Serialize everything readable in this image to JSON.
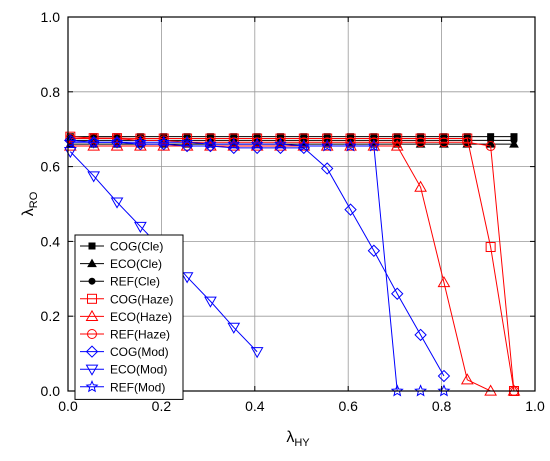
{
  "chart_data": {
    "type": "line",
    "xlabel": "λ",
    "xlabel_sub": "HY",
    "ylabel": "λ",
    "ylabel_sub": "RO",
    "xlim": [
      0,
      1
    ],
    "ylim": [
      0,
      1
    ],
    "x_ticks": [
      "0.0",
      "0.2",
      "0.4",
      "0.6",
      "0.8",
      "1.0"
    ],
    "y_ticks": [
      "0.0",
      "0.2",
      "0.4",
      "0.6",
      "0.8",
      "1.0"
    ],
    "grid": true,
    "legend_position": "lower-left",
    "series": [
      {
        "name": "COG(Cle)",
        "color": "#000000",
        "marker": "square-filled",
        "x": [
          0.005,
          0.055,
          0.105,
          0.155,
          0.205,
          0.255,
          0.305,
          0.355,
          0.405,
          0.455,
          0.505,
          0.555,
          0.605,
          0.655,
          0.705,
          0.755,
          0.805,
          0.855,
          0.905,
          0.955
        ],
        "y": [
          0.68,
          0.68,
          0.68,
          0.68,
          0.68,
          0.68,
          0.68,
          0.68,
          0.68,
          0.68,
          0.68,
          0.68,
          0.68,
          0.68,
          0.68,
          0.68,
          0.68,
          0.68,
          0.68,
          0.68
        ]
      },
      {
        "name": "ECO(Cle)",
        "color": "#000000",
        "marker": "triangle-filled",
        "x": [
          0.005,
          0.055,
          0.105,
          0.155,
          0.205,
          0.255,
          0.305,
          0.355,
          0.405,
          0.455,
          0.505,
          0.555,
          0.605,
          0.655,
          0.705,
          0.755,
          0.805,
          0.855,
          0.905,
          0.955
        ],
        "y": [
          0.66,
          0.66,
          0.66,
          0.66,
          0.66,
          0.66,
          0.66,
          0.66,
          0.66,
          0.66,
          0.66,
          0.66,
          0.66,
          0.66,
          0.66,
          0.66,
          0.66,
          0.66,
          0.66,
          0.66
        ]
      },
      {
        "name": "REF(Cle)",
        "color": "#000000",
        "marker": "circle-filled",
        "x": [
          0.005,
          0.055,
          0.105,
          0.155,
          0.205,
          0.255,
          0.305,
          0.355,
          0.405,
          0.455,
          0.505,
          0.555,
          0.605,
          0.655,
          0.705,
          0.755,
          0.805,
          0.855,
          0.905,
          0.955
        ],
        "y": [
          0.67,
          0.67,
          0.67,
          0.67,
          0.67,
          0.67,
          0.67,
          0.67,
          0.67,
          0.67,
          0.67,
          0.67,
          0.67,
          0.67,
          0.67,
          0.67,
          0.67,
          0.67,
          0.67,
          0.67
        ]
      },
      {
        "name": "COG(Haze)",
        "color": "#ff0000",
        "marker": "square-open",
        "x": [
          0.005,
          0.055,
          0.105,
          0.155,
          0.205,
          0.255,
          0.305,
          0.355,
          0.405,
          0.455,
          0.505,
          0.555,
          0.605,
          0.655,
          0.705,
          0.755,
          0.805,
          0.855,
          0.905,
          0.955
        ],
        "y": [
          0.68,
          0.676,
          0.676,
          0.675,
          0.675,
          0.675,
          0.675,
          0.675,
          0.675,
          0.675,
          0.675,
          0.675,
          0.675,
          0.675,
          0.675,
          0.675,
          0.675,
          0.675,
          0.385,
          0.0
        ]
      },
      {
        "name": "ECO(Haze)",
        "color": "#ff0000",
        "marker": "triangle-open",
        "x": [
          0.005,
          0.055,
          0.105,
          0.155,
          0.205,
          0.255,
          0.305,
          0.355,
          0.405,
          0.455,
          0.505,
          0.555,
          0.605,
          0.655,
          0.705,
          0.755,
          0.805,
          0.855,
          0.905,
          0.955
        ],
        "y": [
          0.655,
          0.655,
          0.655,
          0.655,
          0.655,
          0.655,
          0.655,
          0.655,
          0.655,
          0.655,
          0.655,
          0.655,
          0.655,
          0.655,
          0.655,
          0.545,
          0.29,
          0.03,
          0.0,
          0.0
        ]
      },
      {
        "name": "REF(Haze)",
        "color": "#ff0000",
        "marker": "circle-open",
        "x": [
          0.005,
          0.055,
          0.105,
          0.155,
          0.205,
          0.255,
          0.305,
          0.355,
          0.405,
          0.455,
          0.505,
          0.555,
          0.605,
          0.655,
          0.705,
          0.755,
          0.805,
          0.855,
          0.905,
          0.955
        ],
        "y": [
          0.675,
          0.675,
          0.675,
          0.67,
          0.67,
          0.665,
          0.665,
          0.665,
          0.665,
          0.665,
          0.665,
          0.665,
          0.665,
          0.665,
          0.665,
          0.665,
          0.665,
          0.665,
          0.655,
          0.0
        ]
      },
      {
        "name": "COG(Mod)",
        "color": "#0000ff",
        "marker": "diamond-open",
        "x": [
          0.005,
          0.055,
          0.105,
          0.155,
          0.205,
          0.255,
          0.305,
          0.355,
          0.405,
          0.455,
          0.505,
          0.555,
          0.605,
          0.655,
          0.705,
          0.755,
          0.805
        ],
        "y": [
          0.67,
          0.665,
          0.665,
          0.66,
          0.66,
          0.655,
          0.655,
          0.65,
          0.65,
          0.65,
          0.65,
          0.595,
          0.485,
          0.375,
          0.26,
          0.15,
          0.04
        ]
      },
      {
        "name": "ECO(Mod)",
        "color": "#0000ff",
        "marker": "triangle-down-open",
        "x": [
          0.005,
          0.055,
          0.105,
          0.155,
          0.205,
          0.255,
          0.305,
          0.355,
          0.405
        ],
        "y": [
          0.64,
          0.575,
          0.505,
          0.44,
          0.375,
          0.305,
          0.24,
          0.17,
          0.105
        ]
      },
      {
        "name": "REF(Mod)",
        "color": "#0000ff",
        "marker": "star-open",
        "x": [
          0.005,
          0.055,
          0.105,
          0.155,
          0.205,
          0.255,
          0.305,
          0.355,
          0.405,
          0.455,
          0.505,
          0.555,
          0.605,
          0.655,
          0.705,
          0.755,
          0.805
        ],
        "y": [
          0.665,
          0.665,
          0.665,
          0.665,
          0.665,
          0.665,
          0.66,
          0.66,
          0.66,
          0.66,
          0.655,
          0.655,
          0.655,
          0.655,
          0.0,
          0.0,
          0.0
        ]
      }
    ]
  }
}
